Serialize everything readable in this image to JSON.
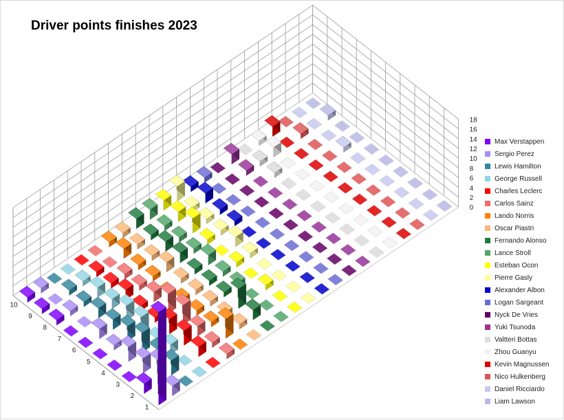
{
  "chart_data": {
    "type": "bar3d",
    "title": "Driver points finishes 2023",
    "positions": [
      "1",
      "2",
      "3",
      "4",
      "5",
      "6",
      "7",
      "8",
      "9",
      "10"
    ],
    "zlim": [
      0,
      18
    ],
    "zticks": [
      "0",
      "2",
      "4",
      "6",
      "8",
      "10",
      "12",
      "14",
      "16",
      "18"
    ],
    "legend_position": "right",
    "series": [
      {
        "name": "Max Verstappen",
        "color": "#7f00ff",
        "values": [
          19,
          2,
          0,
          0,
          0,
          0,
          0,
          1,
          1,
          1
        ]
      },
      {
        "name": "Sergio Perez",
        "color": "#a98cf5",
        "values": [
          2,
          5,
          3,
          3,
          1,
          2,
          0,
          1,
          0,
          1
        ]
      },
      {
        "name": "Lewis Hamilton",
        "color": "#31859c",
        "values": [
          0,
          3,
          3,
          4,
          3,
          2,
          2,
          1,
          1,
          0
        ]
      },
      {
        "name": "George Russell",
        "color": "#92d5e3",
        "values": [
          0,
          0,
          2,
          1,
          3,
          3,
          2,
          2,
          1,
          0
        ]
      },
      {
        "name": "Charles Leclerc",
        "color": "#ff0000",
        "values": [
          0,
          2,
          3,
          3,
          1,
          1,
          2,
          1,
          1,
          0
        ]
      },
      {
        "name": "Carlos Sainz",
        "color": "#f26d6d",
        "values": [
          1,
          1,
          2,
          4,
          4,
          2,
          1,
          1,
          0,
          0
        ]
      },
      {
        "name": "Lando Norris",
        "color": "#ff7f00",
        "values": [
          0,
          4,
          1,
          1,
          1,
          0,
          1,
          1,
          2,
          1
        ]
      },
      {
        "name": "Oscar Piastri",
        "color": "#fcb878",
        "values": [
          0,
          1,
          1,
          1,
          1,
          1,
          2,
          1,
          1,
          1
        ]
      },
      {
        "name": "Fernando Alonso",
        "color": "#1e7a3e",
        "values": [
          0,
          2,
          4,
          1,
          1,
          1,
          2,
          2,
          1,
          2
        ]
      },
      {
        "name": "Lance Stroll",
        "color": "#4fa66a",
        "values": [
          0,
          0,
          0,
          1,
          1,
          2,
          1,
          1,
          1,
          2
        ]
      },
      {
        "name": "Esteban Ocon",
        "color": "#ffff00",
        "values": [
          0,
          0,
          1,
          0,
          1,
          0,
          1,
          3,
          2,
          2
        ]
      },
      {
        "name": "Pierre Gasly",
        "color": "#ffff99",
        "values": [
          0,
          0,
          0,
          0,
          1,
          2,
          1,
          1,
          1,
          3
        ]
      },
      {
        "name": "Alexander Albon",
        "color": "#0000cc",
        "values": [
          0,
          0,
          0,
          0,
          0,
          0,
          1,
          1,
          2,
          1
        ]
      },
      {
        "name": "Logan Sargeant",
        "color": "#6b6bd6",
        "values": [
          0,
          0,
          0,
          0,
          0,
          0,
          0,
          0,
          0,
          1
        ]
      },
      {
        "name": "Nyck De Vries",
        "color": "#660066",
        "values": [
          0,
          0,
          0,
          0,
          0,
          0,
          0,
          0,
          0,
          0
        ]
      },
      {
        "name": "Yuki Tsunoda",
        "color": "#993399",
        "values": [
          0,
          0,
          0,
          0,
          0,
          0,
          0,
          0,
          1,
          2
        ]
      },
      {
        "name": "Valtteri Bottas",
        "color": "#dcdcdc",
        "values": [
          0,
          0,
          0,
          0,
          0,
          0,
          0,
          1,
          1,
          0
        ]
      },
      {
        "name": "Zhou Guanyu",
        "color": "#f2f2f2",
        "values": [
          0,
          0,
          0,
          0,
          0,
          0,
          0,
          0,
          2,
          1
        ]
      },
      {
        "name": "Kevin Magnussen",
        "color": "#dd0000",
        "values": [
          0,
          0,
          0,
          0,
          0,
          0,
          0,
          0,
          0,
          2
        ]
      },
      {
        "name": "Nico Hulkenberg",
        "color": "#e05555",
        "values": [
          0,
          0,
          0,
          0,
          0,
          0,
          0,
          0,
          1,
          0
        ]
      },
      {
        "name": "Daniel Ricciardo",
        "color": "#c8c8f0",
        "values": [
          0,
          0,
          0,
          0,
          0,
          0,
          1,
          0,
          0,
          0
        ]
      },
      {
        "name": "Liam Lawson",
        "color": "#b8b8e6",
        "values": [
          0,
          0,
          0,
          0,
          0,
          0,
          0,
          0,
          1,
          0
        ]
      }
    ]
  }
}
